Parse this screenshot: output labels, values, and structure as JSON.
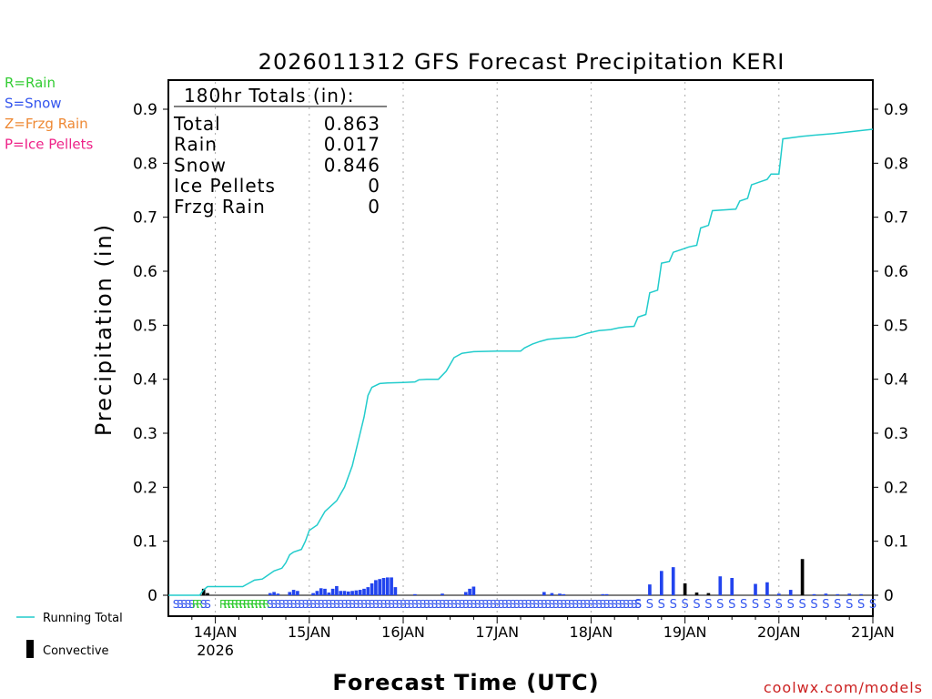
{
  "chart_data": {
    "type": "bar+line",
    "title": "2026011312 GFS Forecast Precipitation KERI",
    "xlabel": "Forecast Time (UTC)",
    "ylabel": "Precipitation (in)",
    "ylim": [
      0,
      0.95
    ],
    "yticks": [
      "0",
      "0.1",
      "0.2",
      "0.3",
      "0.4",
      "0.5",
      "0.6",
      "0.7",
      "0.8",
      "0.9"
    ],
    "xlim_hours": [
      0,
      180
    ],
    "xticks": [
      {
        "label": "14JAN",
        "hour": 12,
        "sub": "2026"
      },
      {
        "label": "15JAN",
        "hour": 36
      },
      {
        "label": "16JAN",
        "hour": 60
      },
      {
        "label": "17JAN",
        "hour": 84
      },
      {
        "label": "18JAN",
        "hour": 108
      },
      {
        "label": "19JAN",
        "hour": 132
      },
      {
        "label": "20JAN",
        "hour": 156
      },
      {
        "label": "21JAN",
        "hour": 180
      }
    ],
    "legend": [
      {
        "label": "R=Rain",
        "color": "#33cc33"
      },
      {
        "label": "S=Snow",
        "color": "#3355ee"
      },
      {
        "label": "Z=Frzg Rain",
        "color": "#ee8833"
      },
      {
        "label": "P=Ice Pellets",
        "color": "#ee2288"
      }
    ],
    "series_legend": {
      "running_total": "Running Total",
      "convective": "Convective"
    },
    "totals": {
      "header": "180hr Totals (in):",
      "rows": [
        {
          "label": "Total",
          "value": "0.863"
        },
        {
          "label": "Rain",
          "value": "0.017"
        },
        {
          "label": "Snow",
          "value": "0.846"
        },
        {
          "label": "Ice Pellets",
          "value": "0"
        },
        {
          "label": "Frzg Rain",
          "value": "0"
        }
      ]
    },
    "running_total": {
      "color": "#22cccc",
      "points": [
        [
          0,
          0
        ],
        [
          8,
          0
        ],
        [
          9,
          0.01
        ],
        [
          10,
          0.016
        ],
        [
          19,
          0.016
        ],
        [
          20,
          0.02
        ],
        [
          22,
          0.028
        ],
        [
          24,
          0.03
        ],
        [
          25,
          0.035
        ],
        [
          27,
          0.045
        ],
        [
          29,
          0.05
        ],
        [
          30,
          0.06
        ],
        [
          31,
          0.075
        ],
        [
          32,
          0.08
        ],
        [
          34,
          0.085
        ],
        [
          35,
          0.1
        ],
        [
          36,
          0.12
        ],
        [
          38,
          0.13
        ],
        [
          40,
          0.155
        ],
        [
          43,
          0.175
        ],
        [
          45,
          0.2
        ],
        [
          47,
          0.24
        ],
        [
          48,
          0.27
        ],
        [
          49,
          0.3
        ],
        [
          50,
          0.33
        ],
        [
          51,
          0.37
        ],
        [
          52,
          0.385
        ],
        [
          54,
          0.392
        ],
        [
          56,
          0.393
        ],
        [
          60,
          0.394
        ],
        [
          63,
          0.395
        ],
        [
          64,
          0.399
        ],
        [
          66,
          0.4
        ],
        [
          69,
          0.4
        ],
        [
          71,
          0.415
        ],
        [
          73,
          0.44
        ],
        [
          75,
          0.448
        ],
        [
          78,
          0.451
        ],
        [
          84,
          0.452
        ],
        [
          90,
          0.452
        ],
        [
          91,
          0.458
        ],
        [
          93,
          0.465
        ],
        [
          95,
          0.47
        ],
        [
          97,
          0.474
        ],
        [
          100,
          0.476
        ],
        [
          104,
          0.478
        ],
        [
          107,
          0.485
        ],
        [
          110,
          0.49
        ],
        [
          113,
          0.492
        ],
        [
          115,
          0.495
        ],
        [
          117,
          0.497
        ],
        [
          119,
          0.498
        ],
        [
          120,
          0.515
        ],
        [
          122,
          0.52
        ],
        [
          123,
          0.56
        ],
        [
          125,
          0.565
        ],
        [
          126,
          0.615
        ],
        [
          128,
          0.618
        ],
        [
          129,
          0.635
        ],
        [
          131,
          0.64
        ],
        [
          133,
          0.645
        ],
        [
          135,
          0.648
        ],
        [
          136,
          0.68
        ],
        [
          138,
          0.685
        ],
        [
          139,
          0.712
        ],
        [
          145,
          0.715
        ],
        [
          146,
          0.73
        ],
        [
          148,
          0.735
        ],
        [
          149,
          0.76
        ],
        [
          151,
          0.765
        ],
        [
          153,
          0.77
        ],
        [
          154,
          0.78
        ],
        [
          156,
          0.78
        ],
        [
          157,
          0.845
        ],
        [
          162,
          0.85
        ],
        [
          170,
          0.855
        ],
        [
          180,
          0.863
        ]
      ]
    },
    "bars": {
      "color": "#2244ee",
      "convective_color": "#000000",
      "values": [
        [
          9,
          0.012,
          "c"
        ],
        [
          10,
          0.004,
          "c"
        ],
        [
          26,
          0.004
        ],
        [
          27,
          0.006
        ],
        [
          28,
          0.003
        ],
        [
          31,
          0.006
        ],
        [
          32,
          0.01
        ],
        [
          33,
          0.008
        ],
        [
          37,
          0.004
        ],
        [
          38,
          0.008
        ],
        [
          39,
          0.013
        ],
        [
          40,
          0.012
        ],
        [
          41,
          0.005
        ],
        [
          42,
          0.012
        ],
        [
          43,
          0.017
        ],
        [
          44,
          0.008
        ],
        [
          45,
          0.008
        ],
        [
          46,
          0.007
        ],
        [
          47,
          0.008
        ],
        [
          48,
          0.009
        ],
        [
          49,
          0.01
        ],
        [
          50,
          0.012
        ],
        [
          51,
          0.015
        ],
        [
          52,
          0.022
        ],
        [
          53,
          0.028
        ],
        [
          54,
          0.03
        ],
        [
          55,
          0.032
        ],
        [
          56,
          0.033
        ],
        [
          57,
          0.033
        ],
        [
          58,
          0.015
        ],
        [
          63,
          0.002
        ],
        [
          70,
          0.003
        ],
        [
          76,
          0.006
        ],
        [
          77,
          0.012
        ],
        [
          78,
          0.016
        ],
        [
          96,
          0.006
        ],
        [
          98,
          0.004
        ],
        [
          100,
          0.003
        ],
        [
          101,
          0.002
        ],
        [
          111,
          0.002
        ],
        [
          112,
          0.002
        ],
        [
          123,
          0.02
        ],
        [
          126,
          0.045
        ],
        [
          129,
          0.052
        ],
        [
          132,
          0.022,
          "c"
        ],
        [
          135,
          0.005,
          "c"
        ],
        [
          138,
          0.004,
          "c"
        ],
        [
          141,
          0.035
        ],
        [
          144,
          0.032
        ],
        [
          150,
          0.021
        ],
        [
          153,
          0.024
        ],
        [
          156,
          0.003
        ],
        [
          159,
          0.01
        ],
        [
          162,
          0.067,
          "c"
        ],
        [
          165,
          0.002
        ],
        [
          168,
          0.003
        ],
        [
          171,
          0.002
        ],
        [
          174,
          0.003
        ],
        [
          177,
          0.002
        ]
      ]
    },
    "ptype_rows": [
      {
        "hours": [
          2,
          3,
          4,
          5,
          6
        ],
        "text": "S",
        "color": "#3355ee"
      },
      {
        "hours": [
          7,
          8
        ],
        "text": "R",
        "color": "#33cc33"
      },
      {
        "hours": [
          9,
          10
        ],
        "text": "S",
        "color": "#3355ee"
      },
      {
        "hours": [
          14,
          15,
          16,
          17,
          18,
          19,
          20,
          21,
          22,
          23,
          24,
          25
        ],
        "text": "R",
        "color": "#33cc33"
      }
    ],
    "ptype_snow_dense": {
      "from": 26,
      "to": 120,
      "step": 1,
      "text": "S",
      "color": "#3355ee"
    },
    "ptype_snow_sparse": {
      "from": 120,
      "to": 180,
      "step": 3,
      "text": "S",
      "color": "#3355ee"
    }
  },
  "watermark": "coolwx.com/models"
}
